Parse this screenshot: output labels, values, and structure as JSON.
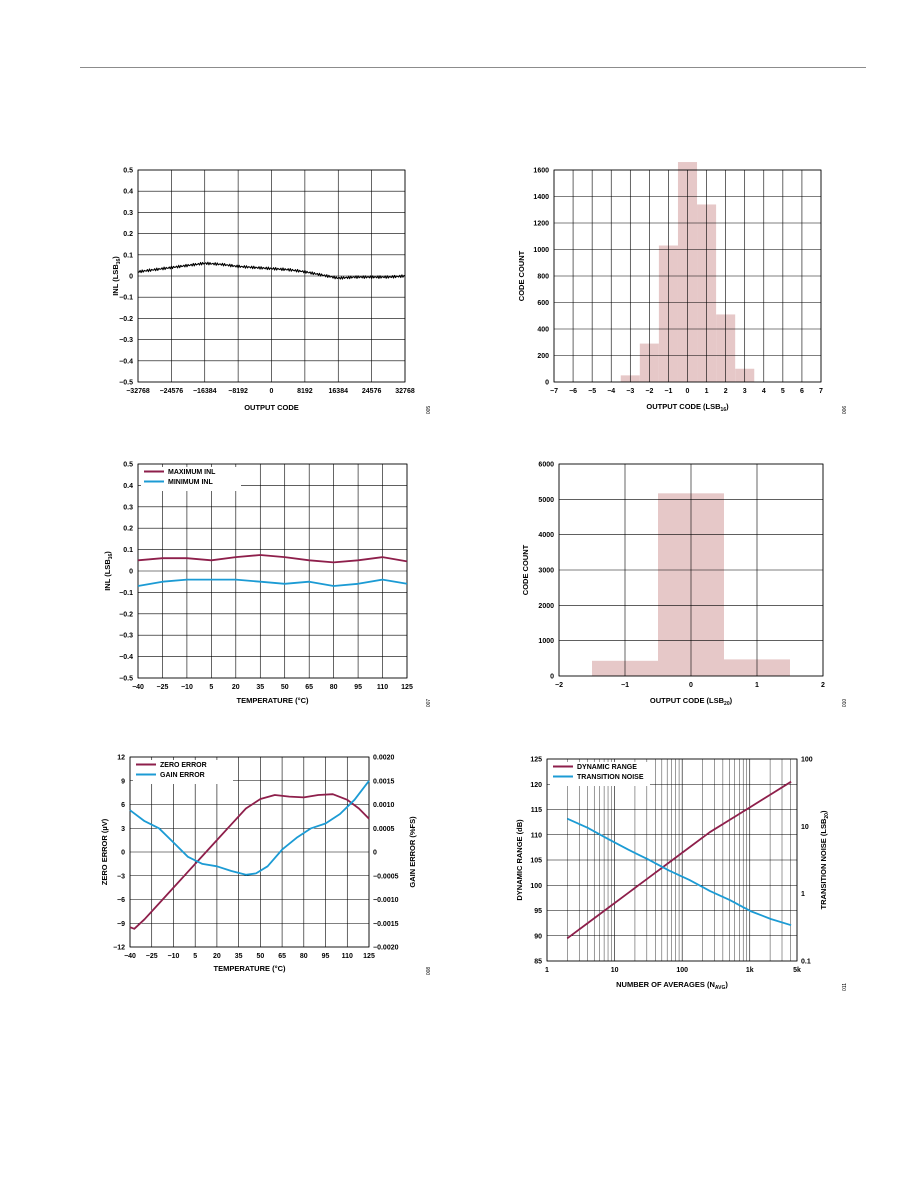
{
  "colors": {
    "maroon": "#8e1f4b",
    "cyan": "#1c9bd4",
    "histogram_fill": "#e6c8c8",
    "grid": "#000000"
  },
  "chart_data": [
    {
      "id": "c1",
      "type": "line",
      "xlabel": "OUTPUT CODE",
      "ylabel": "INL (LSB16)",
      "xlim": [
        -32768,
        32768
      ],
      "ylim": [
        -0.5,
        0.5
      ],
      "x_ticks": [
        -32768,
        -24576,
        -16384,
        -8192,
        0,
        8192,
        16384,
        24576,
        32768
      ],
      "x_tick_labels": [
        "−32768",
        "−24576",
        "−16384",
        "−8192",
        "0",
        "8192",
        "16384",
        "24576",
        "32768"
      ],
      "y_ticks": [
        -0.5,
        -0.4,
        -0.3,
        -0.2,
        -0.1,
        0,
        0.1,
        0.2,
        0.3,
        0.4,
        0.5
      ],
      "y_tick_labels": [
        "−0.5",
        "−0.4",
        "−0.3",
        "−0.2",
        "−0.1",
        "0",
        "0.1",
        "0.2",
        "0.3",
        "0.4",
        "0.5"
      ],
      "series": [
        {
          "color": "#000000",
          "x": [
            -32768,
            -28672,
            -24576,
            -20480,
            -16384,
            -12288,
            -8192,
            -4096,
            0,
            4096,
            8192,
            12288,
            16384,
            20480,
            24576,
            28672,
            32768
          ],
          "y": [
            0.02,
            0.03,
            0.04,
            0.05,
            0.06,
            0.055,
            0.045,
            0.04,
            0.035,
            0.03,
            0.02,
            0.005,
            -0.01,
            -0.005,
            -0.005,
            -0.005,
            0.0
          ]
        }
      ],
      "figure_number": "005"
    },
    {
      "id": "c2",
      "type": "bar",
      "xlabel": "OUTPUT CODE (LSB16)",
      "ylabel": "CODE COUNT",
      "xlim": [
        -7,
        7
      ],
      "ylim": [
        0,
        1600
      ],
      "x_ticks": [
        -7,
        -6,
        -5,
        -4,
        -3,
        -2,
        -1,
        0,
        1,
        2,
        3,
        4,
        5,
        6,
        7
      ],
      "x_tick_labels": [
        "−7",
        "−6",
        "−5",
        "−4",
        "−3",
        "−2",
        "−1",
        "0",
        "1",
        "2",
        "3",
        "4",
        "5",
        "6",
        "7"
      ],
      "y_ticks": [
        0,
        200,
        400,
        600,
        800,
        1000,
        1200,
        1400,
        1600
      ],
      "y_tick_labels": [
        "0",
        "200",
        "400",
        "600",
        "800",
        "1000",
        "1200",
        "1400",
        "1600"
      ],
      "categories": [
        -3,
        -2,
        -1,
        0,
        1,
        2,
        3
      ],
      "values": [
        50,
        290,
        1030,
        1660,
        1340,
        510,
        100
      ],
      "figure_number": "006"
    },
    {
      "id": "c3",
      "type": "line",
      "xlabel": "TEMPERATURE (°C)",
      "ylabel": "INL (LSB16)",
      "xlim": [
        -40,
        125
      ],
      "ylim": [
        -0.5,
        0.5
      ],
      "x_ticks": [
        -40,
        -25,
        -10,
        5,
        20,
        35,
        50,
        65,
        80,
        95,
        110,
        125
      ],
      "x_tick_labels": [
        "−40",
        "−25",
        "−10",
        "5",
        "20",
        "35",
        "50",
        "65",
        "80",
        "95",
        "110",
        "125"
      ],
      "y_ticks": [
        -0.5,
        -0.4,
        -0.3,
        -0.2,
        -0.1,
        0,
        0.1,
        0.2,
        0.3,
        0.4,
        0.5
      ],
      "y_tick_labels": [
        "−0.5",
        "−0.4",
        "−0.3",
        "−0.2",
        "−0.1",
        "0",
        "0.1",
        "0.2",
        "0.3",
        "0.4",
        "0.5"
      ],
      "series": [
        {
          "name": "MAXIMUM INL",
          "color": "#8e1f4b",
          "x": [
            -40,
            -25,
            -10,
            5,
            20,
            35,
            50,
            65,
            80,
            95,
            110,
            125
          ],
          "y": [
            0.05,
            0.06,
            0.06,
            0.05,
            0.065,
            0.075,
            0.065,
            0.05,
            0.04,
            0.05,
            0.065,
            0.045
          ]
        },
        {
          "name": "MINIMUM INL",
          "color": "#1c9bd4",
          "x": [
            -40,
            -25,
            -10,
            5,
            20,
            35,
            50,
            65,
            80,
            95,
            110,
            125
          ],
          "y": [
            -0.07,
            -0.05,
            -0.04,
            -0.04,
            -0.04,
            -0.05,
            -0.06,
            -0.05,
            -0.07,
            -0.06,
            -0.04,
            -0.06
          ]
        }
      ],
      "legend": "top-left",
      "figure_number": "007"
    },
    {
      "id": "c4",
      "type": "bar",
      "xlabel": "OUTPUT CODE (LSB20)",
      "ylabel": "CODE COUNT",
      "xlim": [
        -2,
        2
      ],
      "ylim": [
        0,
        6000
      ],
      "x_ticks": [
        -2,
        -1,
        0,
        1,
        2
      ],
      "x_tick_labels": [
        "−2",
        "−1",
        "0",
        "1",
        "2"
      ],
      "y_ticks": [
        0,
        1000,
        2000,
        3000,
        4000,
        5000,
        6000
      ],
      "y_tick_labels": [
        "0",
        "1000",
        "2000",
        "3000",
        "4000",
        "5000",
        "6000"
      ],
      "categories": [
        -1,
        0,
        1
      ],
      "values": [
        430,
        5170,
        470
      ],
      "figure_number": "010"
    },
    {
      "id": "c5",
      "type": "line",
      "xlabel": "TEMPERATURE (°C)",
      "ylabel": "ZERO ERROR (µV)",
      "y2label": "GAIN ERROR (%FS)",
      "xlim": [
        -40,
        125
      ],
      "ylim": [
        -12,
        12
      ],
      "y2lim": [
        -0.002,
        0.002
      ],
      "x_ticks": [
        -40,
        -25,
        -10,
        5,
        20,
        35,
        50,
        65,
        80,
        95,
        110,
        125
      ],
      "x_tick_labels": [
        "−40",
        "−25",
        "−10",
        "5",
        "20",
        "35",
        "50",
        "65",
        "80",
        "95",
        "110",
        "125"
      ],
      "y_ticks": [
        -12,
        -9,
        -6,
        -3,
        0,
        3,
        6,
        9,
        12
      ],
      "y_tick_labels": [
        "−12",
        "−9",
        "−6",
        "−3",
        "0",
        "3",
        "6",
        "9",
        "12"
      ],
      "y2_ticks": [
        -0.002,
        -0.0015,
        -0.001,
        -0.0005,
        0,
        0.0005,
        0.001,
        0.0015,
        0.002
      ],
      "y2_tick_labels": [
        "−0.0020",
        "−0.0015",
        "−0.0010",
        "−0.0005",
        "0",
        "0.0005",
        "0.0010",
        "0.0015",
        "0.0020"
      ],
      "series": [
        {
          "name": "ZERO ERROR",
          "color": "#8e1f4b",
          "axis": "left",
          "x": [
            -40,
            -37,
            -30,
            -20,
            -10,
            0,
            10,
            20,
            30,
            40,
            50,
            60,
            70,
            80,
            90,
            100,
            110,
            118,
            125
          ],
          "y": [
            -9.5,
            -9.7,
            -8.5,
            -6.5,
            -4.5,
            -2.5,
            -0.5,
            1.5,
            3.5,
            5.5,
            6.7,
            7.2,
            7.0,
            6.9,
            7.2,
            7.3,
            6.6,
            5.5,
            4.2
          ]
        },
        {
          "name": "GAIN ERROR",
          "color": "#1c9bd4",
          "axis": "right",
          "x": [
            -40,
            -30,
            -20,
            -10,
            0,
            10,
            20,
            30,
            40,
            47,
            55,
            65,
            75,
            85,
            95,
            105,
            115,
            125
          ],
          "y": [
            0.00088,
            0.00065,
            0.0005,
            0.0002,
            -0.0001,
            -0.00025,
            -0.0003,
            -0.0004,
            -0.00048,
            -0.00045,
            -0.0003,
            5e-05,
            0.0003,
            0.0005,
            0.0006,
            0.0008,
            0.0011,
            0.0015
          ]
        }
      ],
      "legend": "top-left",
      "figure_number": "008"
    },
    {
      "id": "c6",
      "type": "line",
      "xlabel": "NUMBER OF AVERAGES (NAVG)",
      "ylabel": "DYNAMIC RANGE (dB)",
      "y2label": "TRANSITION NOISE (LSB20)",
      "xscale": "log",
      "xlim": [
        1,
        5000
      ],
      "ylim": [
        85,
        125
      ],
      "y2scale": "log",
      "y2lim": [
        0.1,
        100
      ],
      "x_ticks": [
        1,
        10,
        100,
        1000,
        5000
      ],
      "x_tick_labels": [
        "1",
        "10",
        "100",
        "1k",
        "5k"
      ],
      "y_ticks": [
        85,
        90,
        95,
        100,
        105,
        110,
        115,
        120,
        125
      ],
      "y_tick_labels": [
        "85",
        "90",
        "95",
        "100",
        "105",
        "110",
        "115",
        "120",
        "125"
      ],
      "y2_ticks": [
        0.1,
        1,
        10,
        100
      ],
      "y2_tick_labels": [
        "0.1",
        "1",
        "10",
        "100"
      ],
      "series": [
        {
          "name": "DYNAMIC RANGE",
          "color": "#8e1f4b",
          "axis": "left",
          "x": [
            2,
            4,
            8,
            16,
            32,
            64,
            128,
            256,
            512,
            1024,
            2048,
            4096
          ],
          "y": [
            89.5,
            92.5,
            95.5,
            98.5,
            101.5,
            104.5,
            107.5,
            110.5,
            113.0,
            115.5,
            118.0,
            120.5
          ]
        },
        {
          "name": "TRANSITION NOISE",
          "color": "#1c9bd4",
          "axis": "right",
          "x": [
            2,
            4,
            8,
            16,
            32,
            64,
            128,
            256,
            512,
            1024,
            2048,
            4096
          ],
          "y": [
            13,
            9.5,
            6.5,
            4.5,
            3.2,
            2.2,
            1.6,
            1.1,
            0.8,
            0.55,
            0.42,
            0.34
          ]
        }
      ],
      "legend": "top-left",
      "figure_number": "011"
    }
  ]
}
